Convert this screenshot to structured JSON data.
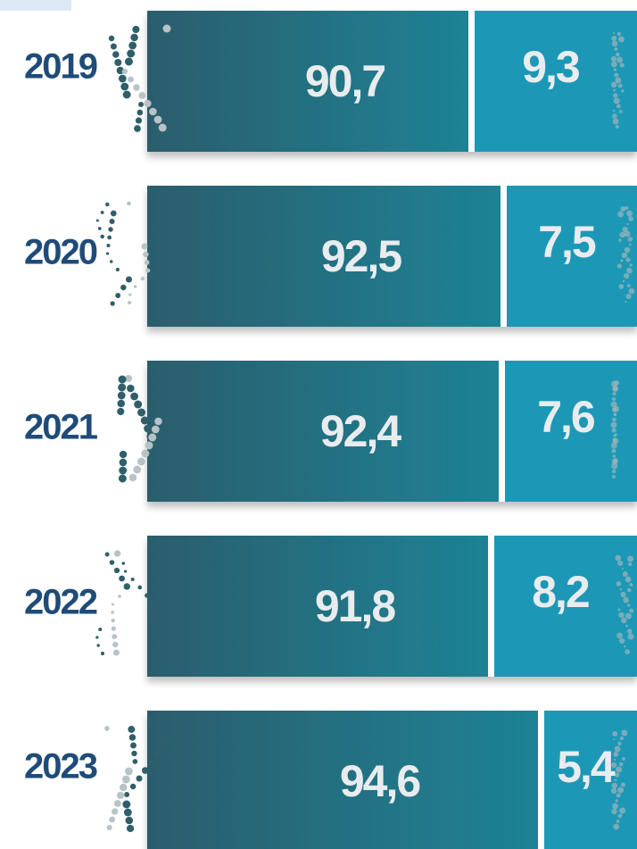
{
  "chart_data": {
    "type": "bar",
    "orientation": "horizontal",
    "stacked": true,
    "categories": [
      "2019",
      "2020",
      "2021",
      "2022",
      "2023"
    ],
    "series": [
      {
        "color": "#2a6472",
        "values": [
          90.7,
          92.5,
          92.4,
          91.8,
          94.6
        ],
        "value_labels": [
          "90,7",
          "92,5",
          "92,4",
          "91,8",
          "94,6"
        ]
      },
      {
        "color": "#1a98b6",
        "values": [
          9.3,
          7.5,
          7.6,
          8.2,
          5.4
        ],
        "value_labels": [
          "9,3",
          "7,5",
          "7,6",
          "8,2",
          "5,4"
        ]
      }
    ]
  }
}
